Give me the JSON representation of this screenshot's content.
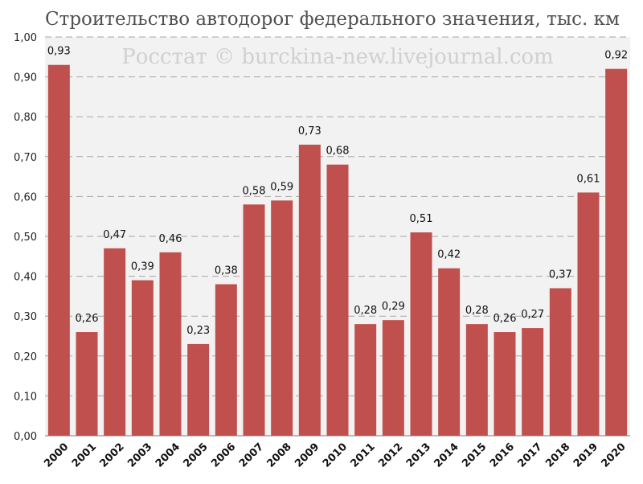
{
  "chart_data": {
    "type": "bar",
    "title": "Строительство автодорог федерального значения, тыс. км",
    "watermark": "Росстат © burckina-new.livejournal.com",
    "categories": [
      "2000",
      "2001",
      "2002",
      "2003",
      "2004",
      "2005",
      "2006",
      "2007",
      "2008",
      "2009",
      "2010",
      "2011",
      "2012",
      "2013",
      "2014",
      "2015",
      "2016",
      "2017",
      "2018",
      "2019",
      "2020"
    ],
    "values": [
      0.93,
      0.26,
      0.47,
      0.39,
      0.46,
      0.23,
      0.38,
      0.58,
      0.59,
      0.73,
      0.68,
      0.28,
      0.29,
      0.51,
      0.42,
      0.28,
      0.26,
      0.27,
      0.37,
      0.61,
      0.92
    ],
    "data_labels": [
      "0,93",
      "0,26",
      "0,47",
      "0,39",
      "0,46",
      "0,23",
      "0,38",
      "0,58",
      "0,59",
      "0,73",
      "0,68",
      "0,28",
      "0,29",
      "0,51",
      "0,42",
      "0,28",
      "0,26",
      "0,27",
      "0,37",
      "0,61",
      "0,92"
    ],
    "xlabel": "",
    "ylabel": "",
    "ylim": [
      0,
      1.0
    ],
    "yticks": [
      0,
      0.1,
      0.2,
      0.3,
      0.4,
      0.5,
      0.6,
      0.7,
      0.8,
      0.9,
      1.0
    ],
    "ytick_labels": [
      "0,00",
      "0,10",
      "0,20",
      "0,30",
      "0,40",
      "0,50",
      "0,60",
      "0,70",
      "0,80",
      "0,90",
      "1,00"
    ],
    "grid": true,
    "legend": "none",
    "colors": {
      "bar": "#c0504d",
      "plot_background": "#f2f2f2",
      "grid": "#a6a6a6"
    }
  }
}
